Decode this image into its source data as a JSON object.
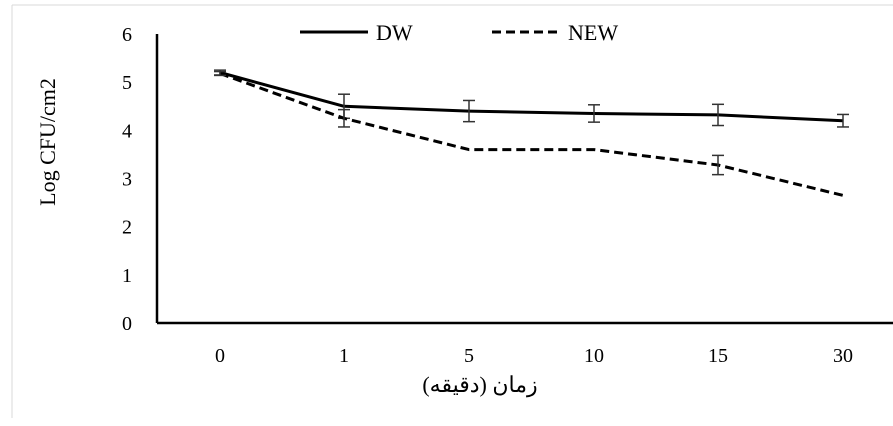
{
  "chart_data": {
    "type": "line",
    "title": "",
    "xlabel": "زمان (دقیقه)",
    "ylabel": "Log CFU/cm2",
    "categories": [
      "0",
      "1",
      "5",
      "10",
      "15",
      "30"
    ],
    "ylim": [
      0,
      6
    ],
    "yticks": [
      "0",
      "1",
      "2",
      "3",
      "4",
      "5",
      "6"
    ],
    "grid": false,
    "legend_position": "top",
    "series": [
      {
        "name": "DW",
        "style": "solid",
        "color": "#000000",
        "values": [
          5.2,
          4.5,
          4.4,
          4.35,
          4.32,
          4.2
        ],
        "errors": [
          0.05,
          0.25,
          0.22,
          0.18,
          0.22,
          0.13
        ]
      },
      {
        "name": "NEW",
        "style": "dashed",
        "color": "#000000",
        "values": [
          5.18,
          4.25,
          3.6,
          3.6,
          3.28,
          2.65
        ],
        "errors": [
          0.04,
          0.18,
          0.0,
          0.0,
          0.2,
          0.0
        ]
      }
    ]
  }
}
